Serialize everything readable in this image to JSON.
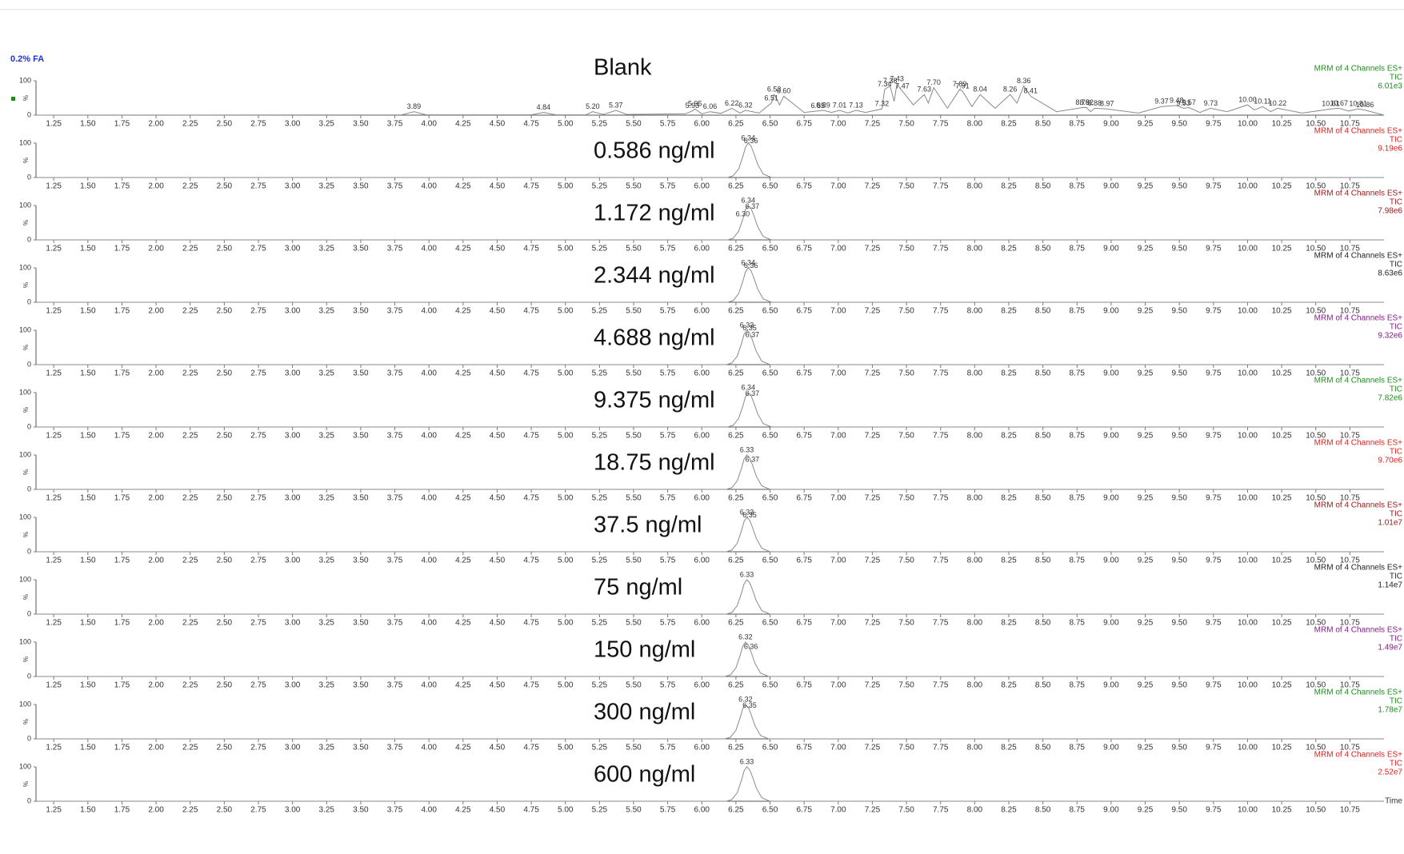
{
  "chart_data": {
    "type": "line",
    "heading": "0.2% FA",
    "x_label": "Time",
    "xlim": [
      1.12,
      11.0
    ],
    "xticks": [
      1.25,
      {
        "value": 1.5,
        "label": "1.50"
      },
      1.75,
      {
        "value": 2,
        "label": "2.00"
      },
      2.25,
      {
        "value": 2.5,
        "label": "2.50"
      },
      2.75,
      {
        "value": 3,
        "label": "3.00"
      },
      3.25,
      {
        "value": 3.5,
        "label": "3.50"
      },
      3.75,
      {
        "value": 4,
        "label": "4.00"
      },
      4.25,
      {
        "value": 4.5,
        "label": "4.50"
      },
      4.75,
      {
        "value": 5,
        "label": "5.00"
      },
      5.25,
      {
        "value": 5.5,
        "label": "5.50"
      },
      5.75,
      {
        "value": 6,
        "label": "6.00"
      },
      6.25,
      {
        "value": 6.5,
        "label": "6.50"
      },
      6.75,
      {
        "value": 7,
        "label": "7.00"
      },
      7.25,
      {
        "value": 7.5,
        "label": "7.50"
      },
      7.75,
      {
        "value": 8,
        "label": "8.00"
      },
      8.25,
      {
        "value": 8.5,
        "label": "8.50"
      },
      8.75,
      {
        "value": 9,
        "label": "9.00"
      },
      9.25,
      {
        "value": 9.5,
        "label": "9.50"
      },
      9.75,
      {
        "value": 10,
        "label": "10.00"
      },
      10.25,
      {
        "value": 10.5,
        "label": "10.50"
      },
      10.75
    ],
    "panels": [
      {
        "title": "Blank",
        "header": "MRM of 4 Channels ES+",
        "channel": "TIC",
        "intensity": "6.01e3",
        "color": "#1a8f1a",
        "ylim": [
          0,
          100
        ],
        "yticks": [
          0,
          100
        ],
        "y_label": "%",
        "x": [
          1.12,
          3.8,
          3.89,
          3.98,
          4.75,
          4.84,
          4.93,
          5.15,
          5.2,
          5.28,
          5.37,
          5.45,
          5.88,
          5.93,
          5.95,
          6.0,
          6.06,
          6.14,
          6.22,
          6.28,
          6.32,
          6.42,
          6.51,
          6.53,
          6.57,
          6.6,
          6.75,
          6.85,
          6.89,
          6.95,
          7.01,
          7.07,
          7.13,
          7.2,
          7.32,
          7.34,
          7.38,
          7.41,
          7.43,
          7.47,
          7.55,
          7.63,
          7.66,
          7.7,
          7.8,
          7.89,
          7.91,
          7.98,
          8.04,
          8.15,
          8.26,
          8.31,
          8.36,
          8.41,
          8.6,
          8.79,
          8.82,
          8.85,
          8.88,
          8.97,
          9.2,
          9.37,
          9.48,
          9.53,
          9.57,
          9.65,
          9.73,
          9.85,
          10.0,
          10.05,
          10.11,
          10.17,
          10.22,
          10.4,
          10.61,
          10.67,
          10.74,
          10.81,
          10.86,
          11.0
        ],
        "values": [
          0,
          1,
          10,
          1,
          1,
          8,
          1,
          1,
          10,
          2,
          14,
          2,
          4,
          12,
          18,
          4,
          10,
          5,
          20,
          6,
          14,
          6,
          35,
          60,
          30,
          55,
          8,
          12,
          14,
          8,
          14,
          6,
          14,
          8,
          18,
          75,
          85,
          40,
          90,
          70,
          30,
          60,
          35,
          80,
          20,
          75,
          70,
          25,
          60,
          20,
          60,
          35,
          85,
          55,
          10,
          22,
          22,
          10,
          20,
          18,
          6,
          25,
          28,
          20,
          22,
          8,
          20,
          10,
          30,
          15,
          25,
          10,
          20,
          6,
          18,
          20,
          12,
          18,
          15,
          0
        ],
        "annotations": [
          {
            "text": "3.89",
            "x": 3.89
          },
          {
            "text": "4.84",
            "x": 4.84
          },
          {
            "text": "5.20",
            "x": 5.2
          },
          {
            "text": "5.37",
            "x": 5.37
          },
          {
            "text": "5.93",
            "x": 5.93
          },
          {
            "text": "5.95",
            "x": 5.95
          },
          {
            "text": "6.06",
            "x": 6.06
          },
          {
            "text": "6.22",
            "x": 6.22
          },
          {
            "text": "6.32",
            "x": 6.32
          },
          {
            "text": "6.51",
            "x": 6.51
          },
          {
            "text": "6.53",
            "x": 6.53
          },
          {
            "text": "6.60",
            "x": 6.6
          },
          {
            "text": "6.85",
            "x": 6.85
          },
          {
            "text": "6.89",
            "x": 6.89
          },
          {
            "text": "7.01",
            "x": 7.01
          },
          {
            "text": "7.13",
            "x": 7.13
          },
          {
            "text": "7.32",
            "x": 7.32
          },
          {
            "text": "7.34",
            "x": 7.34
          },
          {
            "text": "7.38",
            "x": 7.38
          },
          {
            "text": "7.43",
            "x": 7.43
          },
          {
            "text": "7.47",
            "x": 7.47
          },
          {
            "text": "7.63",
            "x": 7.63
          },
          {
            "text": "7.70",
            "x": 7.7
          },
          {
            "text": "7.89",
            "x": 7.89
          },
          {
            "text": "7.91",
            "x": 7.91
          },
          {
            "text": "8.04",
            "x": 8.04
          },
          {
            "text": "8.26",
            "x": 8.26
          },
          {
            "text": "8.36",
            "x": 8.36
          },
          {
            "text": "8.41",
            "x": 8.41
          },
          {
            "text": "8.79",
            "x": 8.79
          },
          {
            "text": "8.82",
            "x": 8.82
          },
          {
            "text": "8.88",
            "x": 8.88
          },
          {
            "text": "8.97",
            "x": 8.97
          },
          {
            "text": "9.37",
            "x": 9.37
          },
          {
            "text": "9.48",
            "x": 9.48
          },
          {
            "text": "9.53",
            "x": 9.53
          },
          {
            "text": "9.57",
            "x": 9.57
          },
          {
            "text": "9.73",
            "x": 9.73
          },
          {
            "text": "10.00",
            "x": 10.0
          },
          {
            "text": "10.11",
            "x": 10.11
          },
          {
            "text": "10.22",
            "x": 10.22
          },
          {
            "text": "10.61",
            "x": 10.61
          },
          {
            "text": "10.67",
            "x": 10.67
          },
          {
            "text": "10.81",
            "x": 10.81
          },
          {
            "text": "10.86",
            "x": 10.86
          }
        ]
      },
      {
        "title": "0.586 ng/ml",
        "header": "MRM of 4 Channels ES+",
        "channel": "TIC",
        "intensity": "9.19e6",
        "color": "#e0201b",
        "ylim": [
          0,
          100
        ],
        "yticks": [
          0,
          100
        ],
        "y_label": "%",
        "x": [
          1.12,
          6.19,
          6.23,
          6.27,
          6.3,
          6.32,
          6.34,
          6.36,
          6.38,
          6.41,
          6.45,
          6.51,
          11.0
        ],
        "values": [
          0,
          0,
          5,
          25,
          60,
          88,
          100,
          92,
          72,
          38,
          10,
          0,
          0
        ],
        "annotations": [
          {
            "text": "6.34",
            "x": 6.34
          },
          {
            "text": "6.36",
            "x": 6.36
          }
        ]
      },
      {
        "title": "1.172 ng/ml",
        "header": "MRM of 4 Channels ES+",
        "channel": "TIC",
        "intensity": "7.98e6",
        "color": "#a01818",
        "ylim": [
          0,
          100
        ],
        "yticks": [
          0,
          100
        ],
        "y_label": "%",
        "x": [
          1.12,
          6.19,
          6.23,
          6.27,
          6.3,
          6.32,
          6.34,
          6.36,
          6.38,
          6.41,
          6.45,
          6.51,
          11.0
        ],
        "values": [
          0,
          0,
          5,
          25,
          60,
          88,
          100,
          92,
          72,
          38,
          10,
          0,
          0
        ],
        "annotations": [
          {
            "text": "6.30",
            "x": 6.3
          },
          {
            "text": "6.34",
            "x": 6.34
          },
          {
            "text": "6.37",
            "x": 6.37
          }
        ]
      },
      {
        "title": "2.344 ng/ml",
        "header": "MRM of 4 Channels ES+",
        "channel": "TIC",
        "intensity": "8.63e6",
        "color": "#222222",
        "ylim": [
          0,
          100
        ],
        "yticks": [
          0,
          100
        ],
        "y_label": "%",
        "x": [
          1.12,
          6.19,
          6.23,
          6.27,
          6.3,
          6.32,
          6.34,
          6.36,
          6.38,
          6.41,
          6.45,
          6.51,
          11.0
        ],
        "values": [
          0,
          0,
          5,
          25,
          60,
          88,
          100,
          92,
          72,
          38,
          10,
          0,
          0
        ],
        "annotations": [
          {
            "text": "6.34",
            "x": 6.34
          },
          {
            "text": "6.36",
            "x": 6.36
          }
        ]
      },
      {
        "title": "4.688 ng/ml",
        "header": "MRM of 4 Channels ES+",
        "channel": "TIC",
        "intensity": "9.32e6",
        "color": "#8a1a8a",
        "ylim": [
          0,
          100
        ],
        "yticks": [
          0,
          100
        ],
        "y_label": "%",
        "x": [
          1.12,
          6.18,
          6.22,
          6.26,
          6.29,
          6.31,
          6.33,
          6.35,
          6.37,
          6.4,
          6.44,
          6.5,
          11.0
        ],
        "values": [
          0,
          0,
          5,
          25,
          60,
          88,
          100,
          92,
          72,
          38,
          10,
          0,
          0
        ],
        "annotations": [
          {
            "text": "6.33",
            "x": 6.33
          },
          {
            "text": "6.35",
            "x": 6.35
          },
          {
            "text": "6.37",
            "x": 6.37
          }
        ]
      },
      {
        "title": "9.375 ng/ml",
        "header": "MRM of 4 Channels ES+",
        "channel": "TIC",
        "intensity": "7.82e6",
        "color": "#1a8f1a",
        "ylim": [
          0,
          100
        ],
        "yticks": [
          0,
          100
        ],
        "y_label": "%",
        "x": [
          1.12,
          6.19,
          6.23,
          6.27,
          6.3,
          6.32,
          6.34,
          6.36,
          6.38,
          6.41,
          6.45,
          6.51,
          11.0
        ],
        "values": [
          0,
          0,
          5,
          25,
          60,
          88,
          100,
          92,
          72,
          38,
          10,
          0,
          0
        ],
        "annotations": [
          {
            "text": "6.34",
            "x": 6.34
          },
          {
            "text": "6.37",
            "x": 6.37
          }
        ]
      },
      {
        "title": "18.75 ng/ml",
        "header": "MRM of 4 Channels ES+",
        "channel": "TIC",
        "intensity": "9.70e6",
        "color": "#e0201b",
        "ylim": [
          0,
          100
        ],
        "yticks": [
          0,
          100
        ],
        "y_label": "%",
        "x": [
          1.12,
          6.18,
          6.22,
          6.26,
          6.29,
          6.31,
          6.33,
          6.35,
          6.37,
          6.4,
          6.44,
          6.5,
          11.0
        ],
        "values": [
          0,
          0,
          5,
          25,
          60,
          88,
          100,
          92,
          72,
          38,
          10,
          0,
          0
        ],
        "annotations": [
          {
            "text": "6.33",
            "x": 6.33
          },
          {
            "text": "6.37",
            "x": 6.37
          }
        ]
      },
      {
        "title": "37.5 ng/ml",
        "header": "MRM of 4 Channels ES+",
        "channel": "TIC",
        "intensity": "1.01e7",
        "color": "#a01818",
        "ylim": [
          0,
          100
        ],
        "yticks": [
          0,
          100
        ],
        "y_label": "%",
        "x": [
          1.12,
          6.18,
          6.22,
          6.26,
          6.29,
          6.31,
          6.33,
          6.35,
          6.37,
          6.4,
          6.44,
          6.5,
          11.0
        ],
        "values": [
          0,
          0,
          5,
          25,
          60,
          88,
          100,
          92,
          72,
          38,
          10,
          0,
          0
        ],
        "annotations": [
          {
            "text": "6.33",
            "x": 6.33
          },
          {
            "text": "6.35",
            "x": 6.35
          }
        ]
      },
      {
        "title": "75 ng/ml",
        "header": "MRM of 4 Channels ES+",
        "channel": "TIC",
        "intensity": "1.14e7",
        "color": "#222222",
        "ylim": [
          0,
          100
        ],
        "yticks": [
          0,
          100
        ],
        "y_label": "%",
        "x": [
          1.12,
          6.18,
          6.22,
          6.26,
          6.29,
          6.31,
          6.33,
          6.35,
          6.37,
          6.4,
          6.44,
          6.5,
          11.0
        ],
        "values": [
          0,
          0,
          5,
          25,
          60,
          88,
          100,
          92,
          72,
          38,
          10,
          0,
          0
        ],
        "annotations": [
          {
            "text": "6.33",
            "x": 6.33
          }
        ]
      },
      {
        "title": "150 ng/ml",
        "header": "MRM of 4 Channels ES+",
        "channel": "TIC",
        "intensity": "1.49e7",
        "color": "#8a1a8a",
        "ylim": [
          0,
          100
        ],
        "yticks": [
          0,
          100
        ],
        "y_label": "%",
        "x": [
          1.12,
          6.17,
          6.21,
          6.25,
          6.28,
          6.3,
          6.32,
          6.34,
          6.36,
          6.39,
          6.43,
          6.49,
          11.0
        ],
        "values": [
          0,
          0,
          5,
          25,
          60,
          88,
          100,
          92,
          72,
          38,
          10,
          0,
          0
        ],
        "annotations": [
          {
            "text": "6.32",
            "x": 6.32
          },
          {
            "text": "6.36",
            "x": 6.36
          }
        ]
      },
      {
        "title": "300 ng/ml",
        "header": "MRM of 4 Channels ES+",
        "channel": "TIC",
        "intensity": "1.78e7",
        "color": "#1a8f1a",
        "ylim": [
          0,
          100
        ],
        "yticks": [
          0,
          100
        ],
        "y_label": "%",
        "x": [
          1.12,
          6.17,
          6.21,
          6.25,
          6.28,
          6.3,
          6.32,
          6.34,
          6.36,
          6.39,
          6.43,
          6.49,
          11.0
        ],
        "values": [
          0,
          0,
          5,
          25,
          60,
          88,
          100,
          92,
          72,
          38,
          10,
          0,
          0
        ],
        "annotations": [
          {
            "text": "6.32",
            "x": 6.32
          },
          {
            "text": "6.35",
            "x": 6.35
          }
        ]
      },
      {
        "title": "600 ng/ml",
        "header": "MRM of 4 Channels ES+",
        "channel": "TIC",
        "intensity": "2.52e7",
        "color": "#e0201b",
        "ylim": [
          0,
          100
        ],
        "yticks": [
          0,
          100
        ],
        "y_label": "%",
        "x": [
          1.12,
          6.18,
          6.22,
          6.26,
          6.29,
          6.31,
          6.33,
          6.35,
          6.37,
          6.4,
          6.44,
          6.5,
          11.0
        ],
        "values": [
          0,
          0,
          5,
          25,
          60,
          88,
          100,
          92,
          72,
          38,
          10,
          0,
          0
        ],
        "annotations": [
          {
            "text": "6.33",
            "x": 6.33
          }
        ]
      }
    ]
  }
}
